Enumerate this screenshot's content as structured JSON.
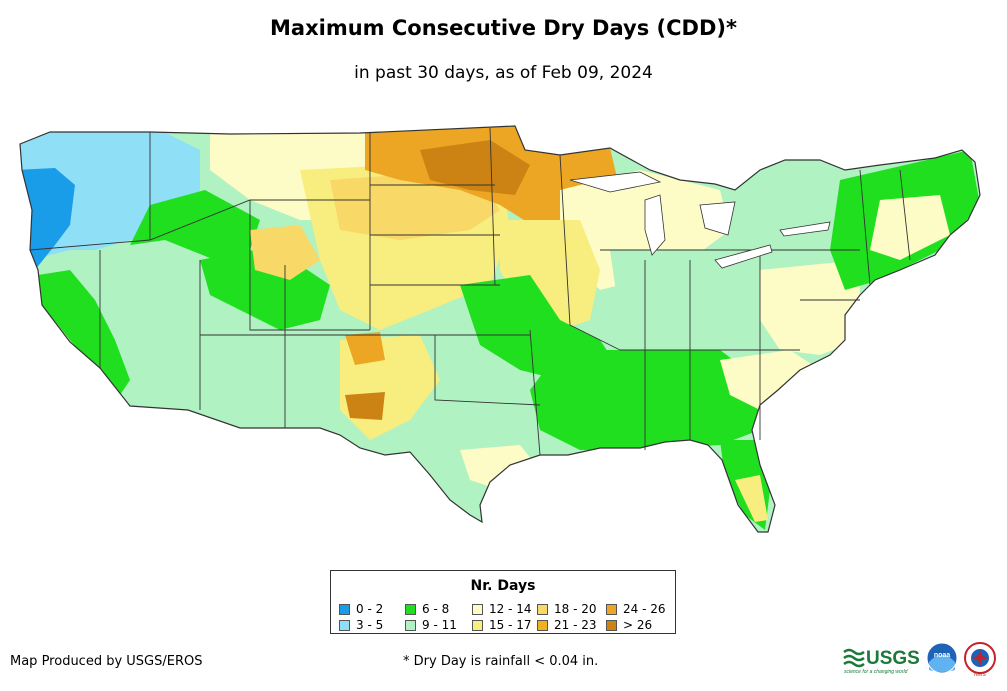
{
  "title": "Maximum Consecutive Dry Days (CDD)*",
  "subtitle": "in past 30 days, as of Feb 09, 2024",
  "legend": {
    "title": "Nr. Days",
    "items": [
      {
        "label": "0 - 2",
        "color": "#1a9de8"
      },
      {
        "label": "3 - 5",
        "color": "#8fdff7"
      },
      {
        "label": "6 - 8",
        "color": "#1fdf1f"
      },
      {
        "label": "9 - 11",
        "color": "#b0f2c2"
      },
      {
        "label": "12 - 14",
        "color": "#fdfbc6"
      },
      {
        "label": "15 - 17",
        "color": "#f7ee7f"
      },
      {
        "label": "18 - 20",
        "color": "#f8d866"
      },
      {
        "label": "21 - 23",
        "color": "#f0b31d"
      },
      {
        "label": "24 - 26",
        "color": "#eca624"
      },
      {
        "label": "> 26",
        "color": "#cc8313"
      }
    ]
  },
  "credit": "Map Produced by USGS/EROS",
  "footnote": "* Dry Day is rainfall < 0.04 in.",
  "logos": {
    "usgs": "USGS",
    "usgs_tagline": "science for a changing world",
    "noaa": "noaa",
    "nws": "NWS"
  }
}
